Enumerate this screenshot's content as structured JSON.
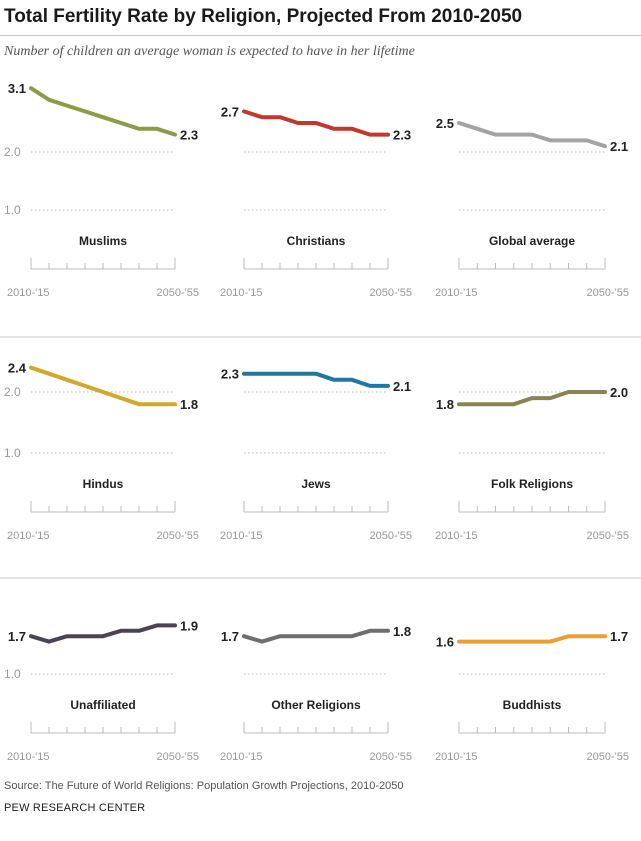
{
  "title": "Total Fertility Rate by Religion, Projected From 2010-2050",
  "subtitle": "Number of children an average woman is expected to have in her lifetime",
  "source": "Source: The Future of World Religions: Population Growth Projections, 2010-2050",
  "credit": "PEW RESEARCH CENTER",
  "chart_data": [
    {
      "type": "line",
      "title": "Muslims",
      "color": "#8c9b45",
      "x": [
        "2010-'15",
        "2015-'20",
        "2020-'25",
        "2025-'30",
        "2030-'35",
        "2035-'40",
        "2040-'45",
        "2045-'50",
        "2050-'55"
      ],
      "values": [
        3.1,
        2.9,
        2.8,
        2.7,
        2.6,
        2.5,
        2.4,
        2.4,
        2.3
      ],
      "start_label": "3.1",
      "end_label": "2.3",
      "ylim": [
        1.0,
        3.1
      ],
      "yticks": [
        "2.0",
        "1.0"
      ],
      "xtick_labels": [
        "2010-'15",
        "2050-'55"
      ],
      "grid": true
    },
    {
      "type": "line",
      "title": "Christians",
      "color": "#c0392b",
      "x": [
        "2010-'15",
        "2015-'20",
        "2020-'25",
        "2025-'30",
        "2030-'35",
        "2035-'40",
        "2040-'45",
        "2045-'50",
        "2050-'55"
      ],
      "values": [
        2.7,
        2.6,
        2.6,
        2.5,
        2.5,
        2.4,
        2.4,
        2.3,
        2.3
      ],
      "start_label": "2.7",
      "end_label": "2.3",
      "ylim": [
        1.0,
        3.1
      ],
      "xtick_labels": [
        "2010-'15",
        "2050-'55"
      ],
      "grid": true
    },
    {
      "type": "line",
      "title": "Global average",
      "color": "#a3a3a3",
      "x": [
        "2010-'15",
        "2015-'20",
        "2020-'25",
        "2025-'30",
        "2030-'35",
        "2035-'40",
        "2040-'45",
        "2045-'50",
        "2050-'55"
      ],
      "values": [
        2.5,
        2.4,
        2.3,
        2.3,
        2.3,
        2.2,
        2.2,
        2.2,
        2.1
      ],
      "start_label": "2.5",
      "end_label": "2.1",
      "ylim": [
        1.0,
        3.1
      ],
      "xtick_labels": [
        "2010-'15",
        "2050-'55"
      ],
      "grid": true
    },
    {
      "type": "line",
      "title": "Hindus",
      "color": "#d0a92b",
      "x": [
        "2010-'15",
        "2015-'20",
        "2020-'25",
        "2025-'30",
        "2030-'35",
        "2035-'40",
        "2040-'45",
        "2045-'50",
        "2050-'55"
      ],
      "values": [
        2.4,
        2.3,
        2.2,
        2.1,
        2.0,
        1.9,
        1.8,
        1.8,
        1.8
      ],
      "start_label": "2.4",
      "end_label": "1.8",
      "ylim": [
        1.0,
        2.4
      ],
      "yticks": [
        "2.0",
        "1.0"
      ],
      "xtick_labels": [
        "2010-'15",
        "2050-'55"
      ],
      "grid": true
    },
    {
      "type": "line",
      "title": "Jews",
      "color": "#1f78a4",
      "x": [
        "2010-'15",
        "2015-'20",
        "2020-'25",
        "2025-'30",
        "2030-'35",
        "2035-'40",
        "2040-'45",
        "2045-'50",
        "2050-'55"
      ],
      "values": [
        2.3,
        2.3,
        2.3,
        2.3,
        2.3,
        2.2,
        2.2,
        2.1,
        2.1
      ],
      "start_label": "2.3",
      "end_label": "2.1",
      "ylim": [
        1.0,
        2.4
      ],
      "xtick_labels": [
        "2010-'15",
        "2050-'55"
      ],
      "grid": true
    },
    {
      "type": "line",
      "title": "Folk Religions",
      "color": "#8a8453",
      "x": [
        "2010-'15",
        "2015-'20",
        "2020-'25",
        "2025-'30",
        "2030-'35",
        "2035-'40",
        "2040-'45",
        "2045-'50",
        "2050-'55"
      ],
      "values": [
        1.8,
        1.8,
        1.8,
        1.8,
        1.9,
        1.9,
        2.0,
        2.0,
        2.0
      ],
      "start_label": "1.8",
      "end_label": "2.0",
      "ylim": [
        1.0,
        2.4
      ],
      "xtick_labels": [
        "2010-'15",
        "2050-'55"
      ],
      "grid": true
    },
    {
      "type": "line",
      "title": "Unaffiliated",
      "color": "#4b4352",
      "x": [
        "2010-'15",
        "2015-'20",
        "2020-'25",
        "2025-'30",
        "2030-'35",
        "2035-'40",
        "2040-'45",
        "2045-'50",
        "2050-'55"
      ],
      "values": [
        1.7,
        1.6,
        1.7,
        1.7,
        1.7,
        1.8,
        1.8,
        1.9,
        1.9
      ],
      "start_label": "1.7",
      "end_label": "1.9",
      "ylim": [
        1.0,
        1.9
      ],
      "yticks": [
        "1.0"
      ],
      "xtick_labels": [
        "2010-'15",
        "2050-'55"
      ],
      "grid": true
    },
    {
      "type": "line",
      "title": "Other Religions",
      "color": "#6e6e6e",
      "x": [
        "2010-'15",
        "2015-'20",
        "2020-'25",
        "2025-'30",
        "2030-'35",
        "2035-'40",
        "2040-'45",
        "2045-'50",
        "2050-'55"
      ],
      "values": [
        1.7,
        1.6,
        1.7,
        1.7,
        1.7,
        1.7,
        1.7,
        1.8,
        1.8
      ],
      "start_label": "1.7",
      "end_label": "1.8",
      "ylim": [
        1.0,
        1.9
      ],
      "xtick_labels": [
        "2010-'15",
        "2050-'55"
      ],
      "grid": true
    },
    {
      "type": "line",
      "title": "Buddhists",
      "color": "#e9a032",
      "x": [
        "2010-'15",
        "2015-'20",
        "2020-'25",
        "2025-'30",
        "2030-'35",
        "2035-'40",
        "2040-'45",
        "2045-'50",
        "2050-'55"
      ],
      "values": [
        1.6,
        1.6,
        1.6,
        1.6,
        1.6,
        1.6,
        1.7,
        1.7,
        1.7
      ],
      "start_label": "1.6",
      "end_label": "1.7",
      "ylim": [
        1.0,
        1.9
      ],
      "xtick_labels": [
        "2010-'15",
        "2050-'55"
      ],
      "grid": true
    }
  ]
}
